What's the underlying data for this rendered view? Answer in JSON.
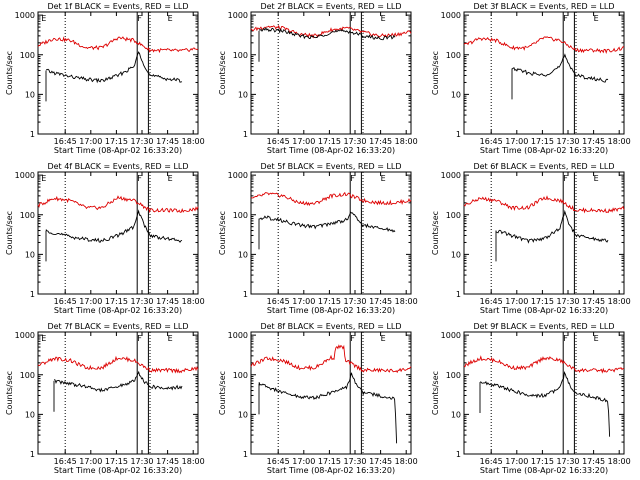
{
  "chart_data": [
    {
      "type": "line",
      "title": "Det 1f BLACK = Events, RED = LLD",
      "ylabel": "Counts/sec",
      "xlabel": "Start Time (08-Apr-02 16:33:20)",
      "x_ticks": [
        "16:45",
        "17:00",
        "17:15",
        "17:30",
        "17:45",
        "18:00"
      ],
      "y_ticks": [
        "1",
        "10",
        "100",
        "1000"
      ],
      "scale": "log",
      "ylim": [
        1,
        1200
      ],
      "marks": [
        "E",
        "F",
        "E"
      ],
      "series": [
        {
          "name": "LLD",
          "color": "#dd0000",
          "x": [
            0,
            10,
            20,
            30,
            40,
            50,
            60,
            70,
            80,
            90,
            100
          ],
          "y": [
            170,
            260,
            230,
            150,
            150,
            270,
            230,
            130,
            130,
            125,
            145
          ]
        },
        {
          "name": "Events",
          "color": "#000000",
          "x": [
            5,
            10,
            20,
            30,
            40,
            50,
            60,
            63,
            66,
            70,
            80,
            90
          ],
          "y": [
            40,
            35,
            28,
            24,
            22,
            30,
            50,
            120,
            60,
            30,
            25,
            22
          ]
        }
      ]
    },
    {
      "type": "line",
      "title": "Det 2f BLACK = Events, RED = LLD",
      "ylabel": "Counts/sec",
      "xlabel": "Start Time (08-Apr-02 16:33:20)",
      "x_ticks": [
        "16:45",
        "17:00",
        "17:15",
        "17:30",
        "17:45",
        "18:00"
      ],
      "y_ticks": [
        "1",
        "10",
        "100",
        "1000"
      ],
      "scale": "log",
      "ylim": [
        1,
        1200
      ],
      "marks": [
        "",
        "F",
        "E"
      ],
      "series": [
        {
          "name": "LLD",
          "color": "#dd0000",
          "x": [
            0,
            10,
            20,
            30,
            40,
            50,
            60,
            70,
            80,
            90,
            100
          ],
          "y": [
            420,
            520,
            470,
            330,
            300,
            420,
            470,
            370,
            300,
            320,
            380
          ]
        },
        {
          "name": "Events",
          "color": "#000000",
          "x": [
            5,
            10,
            20,
            30,
            40,
            50,
            60,
            70,
            80,
            90
          ],
          "y": [
            400,
            430,
            400,
            300,
            270,
            370,
            400,
            300,
            260,
            280
          ]
        }
      ]
    },
    {
      "type": "line",
      "title": "Det 3f BLACK = Events, RED = LLD",
      "ylabel": "Counts/sec",
      "xlabel": "Start Time (08-Apr-02 16:33:20)",
      "x_ticks": [
        "16:45",
        "17:00",
        "17:15",
        "17:30",
        "17:45",
        "18:00"
      ],
      "y_ticks": [
        "1",
        "10",
        "100",
        "1000"
      ],
      "scale": "log",
      "ylim": [
        1,
        1200
      ],
      "marks": [
        "",
        "F",
        "E"
      ],
      "series": [
        {
          "name": "LLD",
          "color": "#dd0000",
          "x": [
            0,
            10,
            20,
            30,
            40,
            50,
            60,
            70,
            80,
            90,
            100
          ],
          "y": [
            170,
            260,
            230,
            150,
            150,
            270,
            230,
            130,
            130,
            125,
            145
          ]
        },
        {
          "name": "Events",
          "color": "#000000",
          "x": [
            30,
            40,
            50,
            60,
            63,
            66,
            70,
            80,
            90
          ],
          "y": [
            45,
            35,
            30,
            50,
            95,
            55,
            30,
            25,
            22
          ]
        }
      ]
    },
    {
      "type": "line",
      "title": "Det 4f BLACK = Events, RED = LLD",
      "ylabel": "Counts/sec",
      "xlabel": "Start Time (08-Apr-02 16:33:20)",
      "x_ticks": [
        "16:45",
        "17:00",
        "17:15",
        "17:30",
        "17:45",
        "18:00"
      ],
      "y_ticks": [
        "1",
        "10",
        "100",
        "1000"
      ],
      "scale": "log",
      "ylim": [
        1,
        1200
      ],
      "marks": [
        "E",
        "F",
        "E"
      ],
      "series": [
        {
          "name": "LLD",
          "color": "#dd0000",
          "x": [
            0,
            10,
            20,
            30,
            40,
            50,
            60,
            70,
            80,
            90,
            100
          ],
          "y": [
            170,
            260,
            230,
            150,
            150,
            270,
            230,
            130,
            130,
            125,
            145
          ]
        },
        {
          "name": "Events",
          "color": "#000000",
          "x": [
            5,
            10,
            20,
            30,
            40,
            50,
            60,
            63,
            66,
            70,
            80,
            90
          ],
          "y": [
            40,
            35,
            28,
            24,
            22,
            30,
            50,
            120,
            60,
            30,
            25,
            22
          ]
        }
      ]
    },
    {
      "type": "line",
      "title": "Det 5f BLACK = Events, RED = LLD",
      "ylabel": "Counts/sec",
      "xlabel": "Start Time (08-Apr-02 16:33:20)",
      "x_ticks": [
        "16:45",
        "17:00",
        "17:15",
        "17:30",
        "17:45",
        "18:00"
      ],
      "y_ticks": [
        "1",
        "10",
        "100",
        "1000"
      ],
      "scale": "log",
      "ylim": [
        1,
        1200
      ],
      "marks": [
        "",
        "F",
        "E"
      ],
      "series": [
        {
          "name": "LLD",
          "color": "#dd0000",
          "x": [
            0,
            10,
            20,
            30,
            40,
            50,
            60,
            70,
            80,
            90,
            100
          ],
          "y": [
            250,
            340,
            300,
            200,
            190,
            300,
            330,
            230,
            200,
            200,
            230
          ]
        },
        {
          "name": "Events",
          "color": "#000000",
          "x": [
            5,
            10,
            20,
            30,
            40,
            50,
            60,
            63,
            66,
            70,
            80,
            90
          ],
          "y": [
            80,
            85,
            70,
            55,
            50,
            60,
            75,
            120,
            80,
            55,
            45,
            40
          ]
        }
      ]
    },
    {
      "type": "line",
      "title": "Det 6f BLACK = Events, RED = LLD",
      "ylabel": "Counts/sec",
      "xlabel": "Start Time (08-Apr-02 16:33:20)",
      "x_ticks": [
        "16:45",
        "17:00",
        "17:15",
        "17:30",
        "17:45",
        "18:00"
      ],
      "y_ticks": [
        "1",
        "10",
        "100",
        "1000"
      ],
      "scale": "log",
      "ylim": [
        1,
        1200
      ],
      "marks": [
        "",
        "F",
        "E"
      ],
      "series": [
        {
          "name": "LLD",
          "color": "#dd0000",
          "x": [
            0,
            10,
            20,
            30,
            40,
            50,
            60,
            70,
            80,
            90,
            100
          ],
          "y": [
            170,
            260,
            230,
            150,
            150,
            270,
            230,
            130,
            130,
            125,
            145
          ]
        },
        {
          "name": "Events",
          "color": "#000000",
          "x": [
            20,
            30,
            40,
            50,
            60,
            63,
            66,
            70,
            80,
            90
          ],
          "y": [
            40,
            30,
            22,
            25,
            45,
            120,
            55,
            30,
            25,
            22
          ]
        }
      ]
    },
    {
      "type": "line",
      "title": "Det 7f BLACK = Events, RED = LLD",
      "ylabel": "Counts/sec",
      "xlabel": "Start Time (08-Apr-02 16:33:20)",
      "x_ticks": [
        "16:45",
        "17:00",
        "17:15",
        "17:30",
        "17:45",
        "18:00"
      ],
      "y_ticks": [
        "1",
        "10",
        "100",
        "1000"
      ],
      "scale": "log",
      "ylim": [
        1,
        1200
      ],
      "marks": [
        "E",
        "F",
        "E"
      ],
      "series": [
        {
          "name": "LLD",
          "color": "#dd0000",
          "x": [
            0,
            10,
            20,
            30,
            40,
            50,
            60,
            70,
            80,
            90,
            100
          ],
          "y": [
            170,
            260,
            230,
            150,
            150,
            270,
            230,
            130,
            130,
            125,
            145
          ]
        },
        {
          "name": "Events",
          "color": "#000000",
          "x": [
            10,
            20,
            30,
            40,
            50,
            60,
            63,
            66,
            70,
            80,
            90
          ],
          "y": [
            70,
            60,
            50,
            40,
            50,
            70,
            110,
            70,
            50,
            45,
            50
          ]
        }
      ]
    },
    {
      "type": "line",
      "title": "Det 8f BLACK = Events, RED = LLD",
      "ylabel": "Counts/sec",
      "xlabel": "Start Time (08-Apr-02 16:33:20)",
      "x_ticks": [
        "16:45",
        "17:00",
        "17:15",
        "17:30",
        "17:45",
        "18:00"
      ],
      "y_ticks": [
        "1",
        "10",
        "100",
        "1000"
      ],
      "scale": "log",
      "ylim": [
        1,
        1200
      ],
      "marks": [
        "",
        "F",
        "E"
      ],
      "series": [
        {
          "name": "LLD",
          "color": "#dd0000",
          "x": [
            0,
            10,
            20,
            30,
            40,
            50,
            52,
            53,
            58,
            59,
            60,
            70,
            80,
            90,
            100
          ],
          "y": [
            170,
            260,
            230,
            150,
            150,
            270,
            270,
            500,
            500,
            200,
            220,
            130,
            130,
            125,
            145
          ]
        },
        {
          "name": "Events",
          "color": "#000000",
          "x": [
            5,
            10,
            20,
            30,
            40,
            50,
            60,
            63,
            66,
            70,
            80,
            90,
            91
          ],
          "y": [
            60,
            50,
            35,
            28,
            26,
            35,
            50,
            110,
            55,
            35,
            30,
            25,
            2
          ]
        }
      ]
    },
    {
      "type": "line",
      "title": "Det 9f BLACK = Events, RED = LLD",
      "ylabel": "Counts/sec",
      "xlabel": "Start Time (08-Apr-02 16:33:20)",
      "x_ticks": [
        "16:45",
        "17:00",
        "17:15",
        "17:30",
        "17:45",
        "18:00"
      ],
      "y_ticks": [
        "1",
        "10",
        "100",
        "1000"
      ],
      "scale": "log",
      "ylim": [
        1,
        1200
      ],
      "marks": [
        "",
        "F",
        "E"
      ],
      "series": [
        {
          "name": "LLD",
          "color": "#dd0000",
          "x": [
            0,
            10,
            20,
            30,
            40,
            50,
            60,
            70,
            80,
            90,
            100
          ],
          "y": [
            170,
            260,
            230,
            150,
            150,
            270,
            230,
            130,
            130,
            125,
            145
          ]
        },
        {
          "name": "Events",
          "color": "#000000",
          "x": [
            10,
            20,
            30,
            40,
            50,
            60,
            63,
            66,
            70,
            80,
            90,
            91
          ],
          "y": [
            65,
            55,
            40,
            30,
            30,
            45,
            110,
            55,
            35,
            28,
            22,
            3
          ]
        }
      ]
    }
  ]
}
